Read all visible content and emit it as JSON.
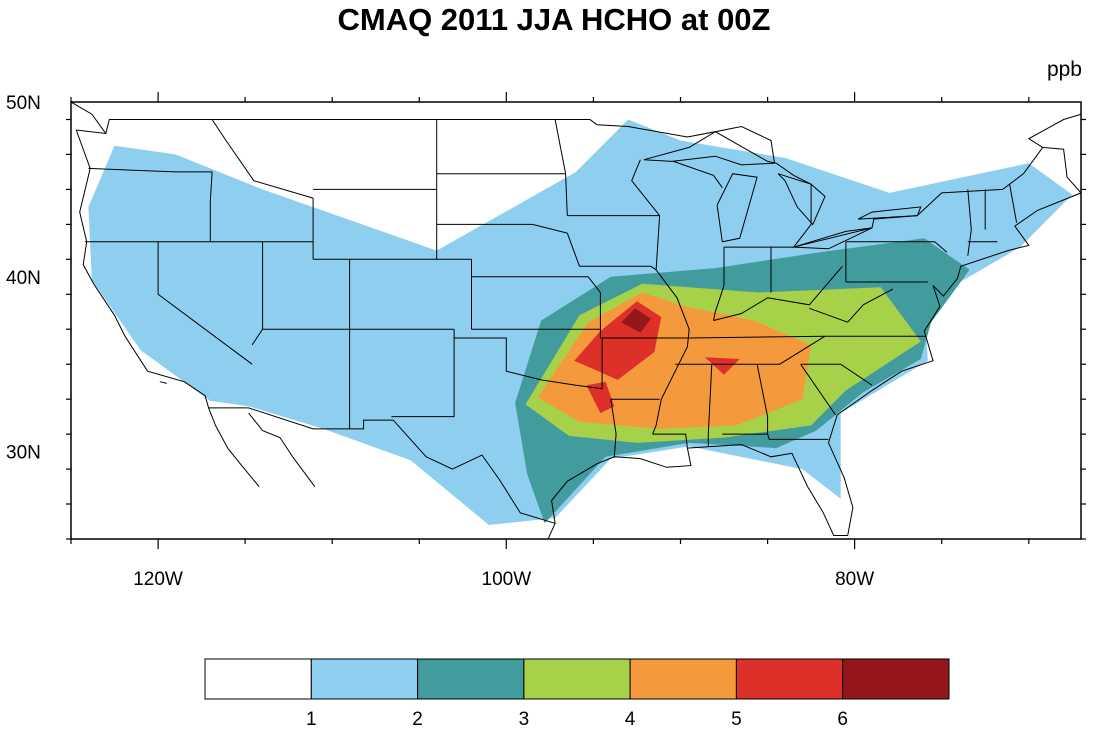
{
  "title": "CMAQ 2011 JJA HCHO at 00Z",
  "units": "ppb",
  "map": {
    "extent": {
      "lon": [
        -125,
        -67
      ],
      "lat": [
        25,
        50
      ]
    },
    "lat_labels": [
      {
        "lat": 50,
        "text": "50N"
      },
      {
        "lat": 40,
        "text": "40N"
      },
      {
        "lat": 30,
        "text": "30N"
      }
    ],
    "lon_labels": [
      {
        "lon": -120,
        "text": "120W"
      },
      {
        "lon": -100,
        "text": "100W"
      },
      {
        "lon": -80,
        "text": "80W"
      }
    ],
    "fields": [
      {
        "level": 1,
        "color": "#8ecfef",
        "polygon": [
          [
            -122.5,
            47.5
          ],
          [
            -119,
            47
          ],
          [
            -114,
            45
          ],
          [
            -104,
            41.5
          ],
          [
            -96,
            46
          ],
          [
            -93,
            49
          ],
          [
            -90,
            47.8
          ],
          [
            -84,
            46.8
          ],
          [
            -78,
            44.8
          ],
          [
            -70,
            46.5
          ],
          [
            -67.5,
            44.7
          ],
          [
            -70.5,
            41.7
          ],
          [
            -76,
            38.5
          ],
          [
            -75.8,
            35.2
          ],
          [
            -80.8,
            32.2
          ],
          [
            -80.8,
            27.3
          ],
          [
            -83,
            29
          ],
          [
            -89.5,
            30.3
          ],
          [
            -94,
            29.6
          ],
          [
            -97.2,
            26.2
          ],
          [
            -101,
            25.8
          ],
          [
            -105.5,
            29.5
          ],
          [
            -110.5,
            31.3
          ],
          [
            -114.8,
            32.6
          ],
          [
            -117,
            32.9
          ],
          [
            -121,
            35.8
          ],
          [
            -123.8,
            39.8
          ],
          [
            -124,
            44
          ]
        ]
      },
      {
        "level": 2,
        "color": "#429c9e",
        "polygon": [
          [
            -98,
            37.5
          ],
          [
            -94,
            40
          ],
          [
            -88,
            40.5
          ],
          [
            -82,
            41.4
          ],
          [
            -76,
            42.2
          ],
          [
            -73.4,
            40.4
          ],
          [
            -75.6,
            37.4
          ],
          [
            -76.2,
            35.3
          ],
          [
            -79.5,
            33.4
          ],
          [
            -82.2,
            31.2
          ],
          [
            -84.5,
            30.2
          ],
          [
            -89.5,
            30.5
          ],
          [
            -94.3,
            29.7
          ],
          [
            -97.8,
            25.9
          ],
          [
            -98.8,
            28.7
          ],
          [
            -99.5,
            32.8
          ]
        ]
      },
      {
        "level": 3,
        "color": "#a8d14a",
        "polygon": [
          [
            -95.8,
            37.8
          ],
          [
            -92.2,
            39.6
          ],
          [
            -85.5,
            39.1
          ],
          [
            -78.5,
            39.4
          ],
          [
            -76.2,
            36.3
          ],
          [
            -80.5,
            33.5
          ],
          [
            -82.5,
            31.5
          ],
          [
            -87.5,
            30.8
          ],
          [
            -92.5,
            30.5
          ],
          [
            -96.4,
            30.9
          ],
          [
            -98.9,
            32.7
          ]
        ]
      },
      {
        "level": 4,
        "color": "#f49a3c",
        "polygon": [
          [
            -95.3,
            37.4
          ],
          [
            -92.2,
            39.1
          ],
          [
            -89.7,
            38.3
          ],
          [
            -85.8,
            37.5
          ],
          [
            -82.5,
            36.1
          ],
          [
            -83,
            33
          ],
          [
            -86.8,
            31.5
          ],
          [
            -91.2,
            31.3
          ],
          [
            -95.8,
            31.7
          ],
          [
            -98.2,
            33.1
          ]
        ]
      },
      {
        "level": 5,
        "color": "#dd3029",
        "polygon": [
          [
            -94.6,
            36.9
          ],
          [
            -92.5,
            38.6
          ],
          [
            -91.1,
            37.7
          ],
          [
            -91.5,
            35.7
          ],
          [
            -93.6,
            34.1
          ],
          [
            -96.1,
            35.2
          ]
        ]
      },
      {
        "level": 5,
        "color": "#dd3029",
        "polygon": [
          [
            -95.4,
            33.8
          ],
          [
            -94.6,
            32.2
          ],
          [
            -93.8,
            32.6
          ],
          [
            -94.3,
            34
          ]
        ]
      },
      {
        "level": 5,
        "color": "#dd3029",
        "polygon": [
          [
            -88.6,
            35.4
          ],
          [
            -87.5,
            34.4
          ],
          [
            -86.6,
            35.3
          ]
        ]
      },
      {
        "level": 6,
        "color": "#95171c",
        "polygon": [
          [
            -93.4,
            37.4
          ],
          [
            -92.6,
            38.2
          ],
          [
            -91.7,
            37.6
          ],
          [
            -92.3,
            36.8
          ]
        ]
      }
    ]
  },
  "colorbar": {
    "colors": [
      "#ffffff",
      "#8ecfef",
      "#429c9e",
      "#a8d14a",
      "#f49a3c",
      "#dd3029",
      "#95171c"
    ],
    "labels": [
      "1",
      "2",
      "3",
      "4",
      "5",
      "6"
    ]
  }
}
